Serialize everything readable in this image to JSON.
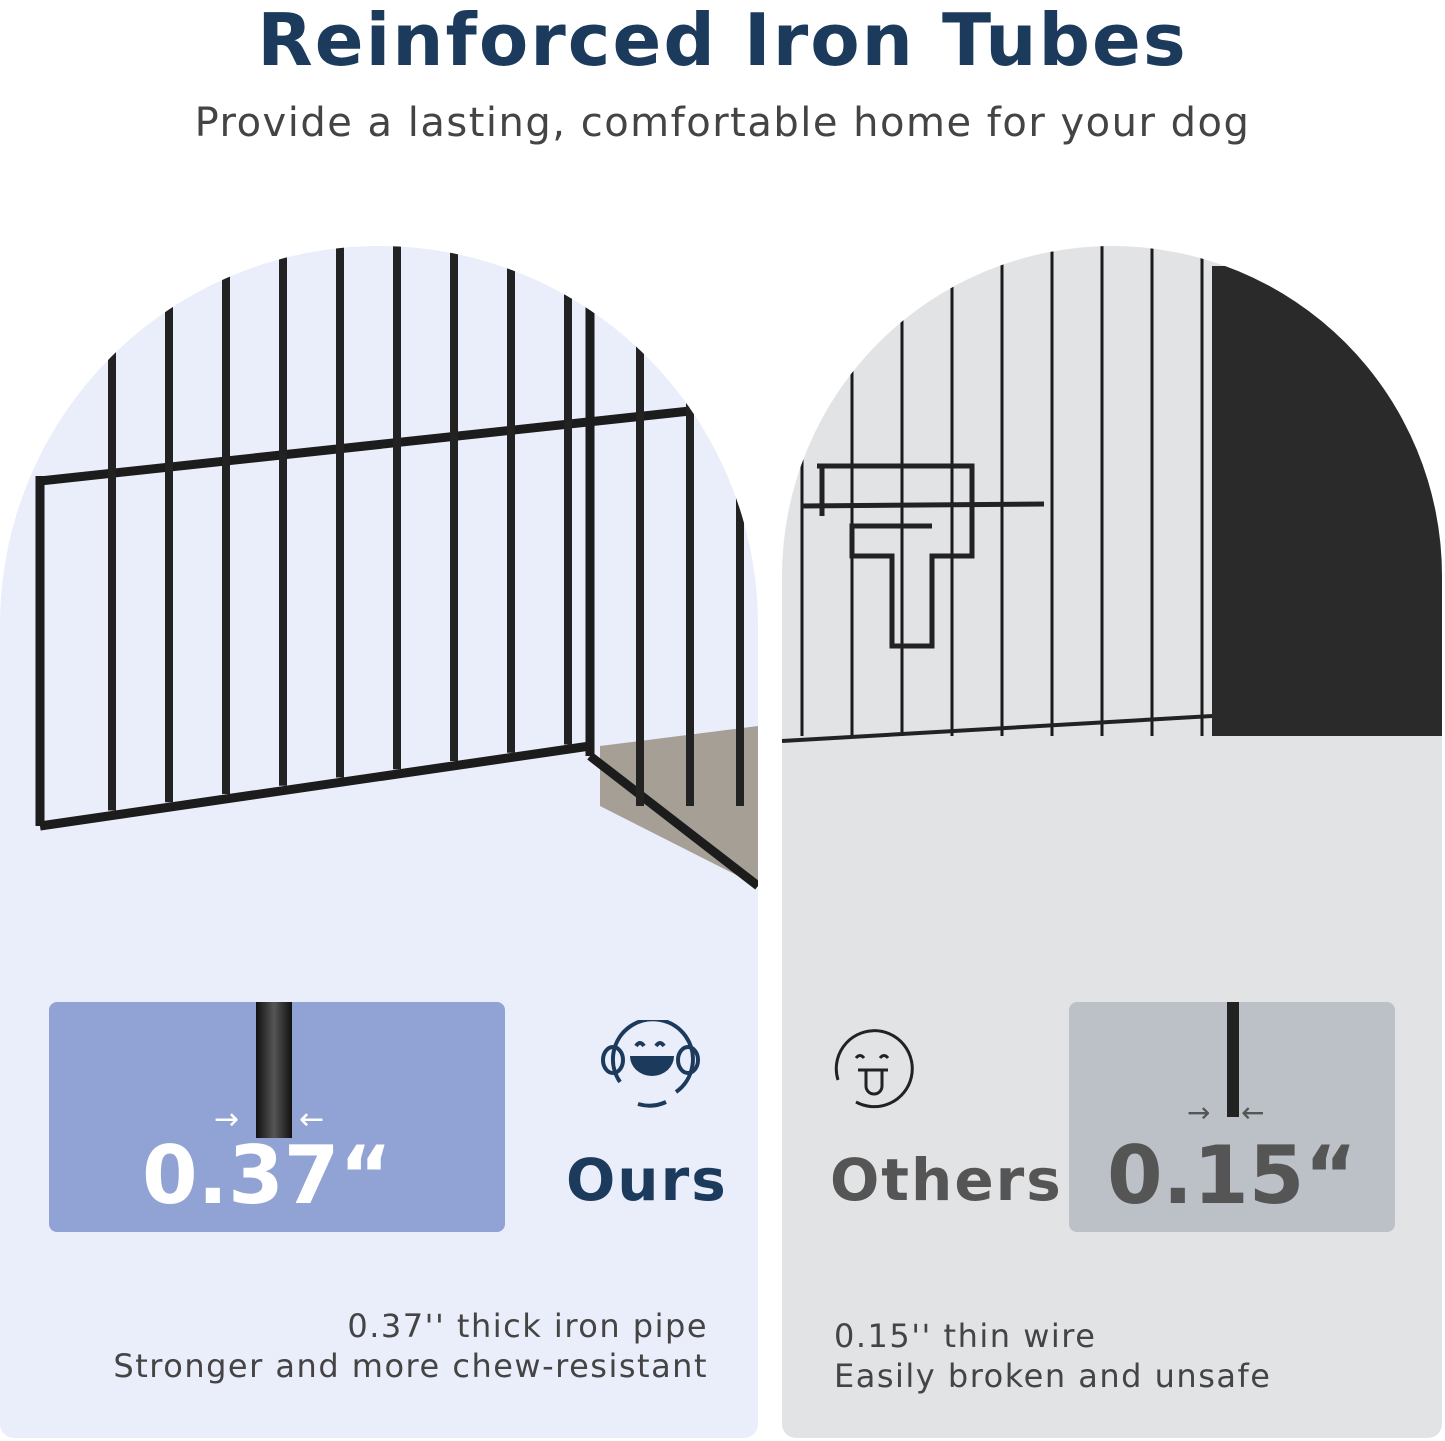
{
  "header": {
    "title": "Reinforced Iron Tubes",
    "subtitle": "Provide a lasting, comfortable home for your dog"
  },
  "ours": {
    "label": "Ours",
    "value": "0.37“",
    "desc_line1": "0.37'' thick iron pipe",
    "desc_line2": "Stronger and more chew-resistant",
    "icon": "laughing-face-icon",
    "box_color": "#91a2d5",
    "label_color": "#1b3a5c"
  },
  "others": {
    "label": "Others",
    "value": "0.15“",
    "desc_line1": "0.15'' thin wire",
    "desc_line2": "Easily broken and unsafe",
    "icon": "tongue-out-face-icon",
    "box_color": "#bcc1c8",
    "label_color": "#555555"
  }
}
